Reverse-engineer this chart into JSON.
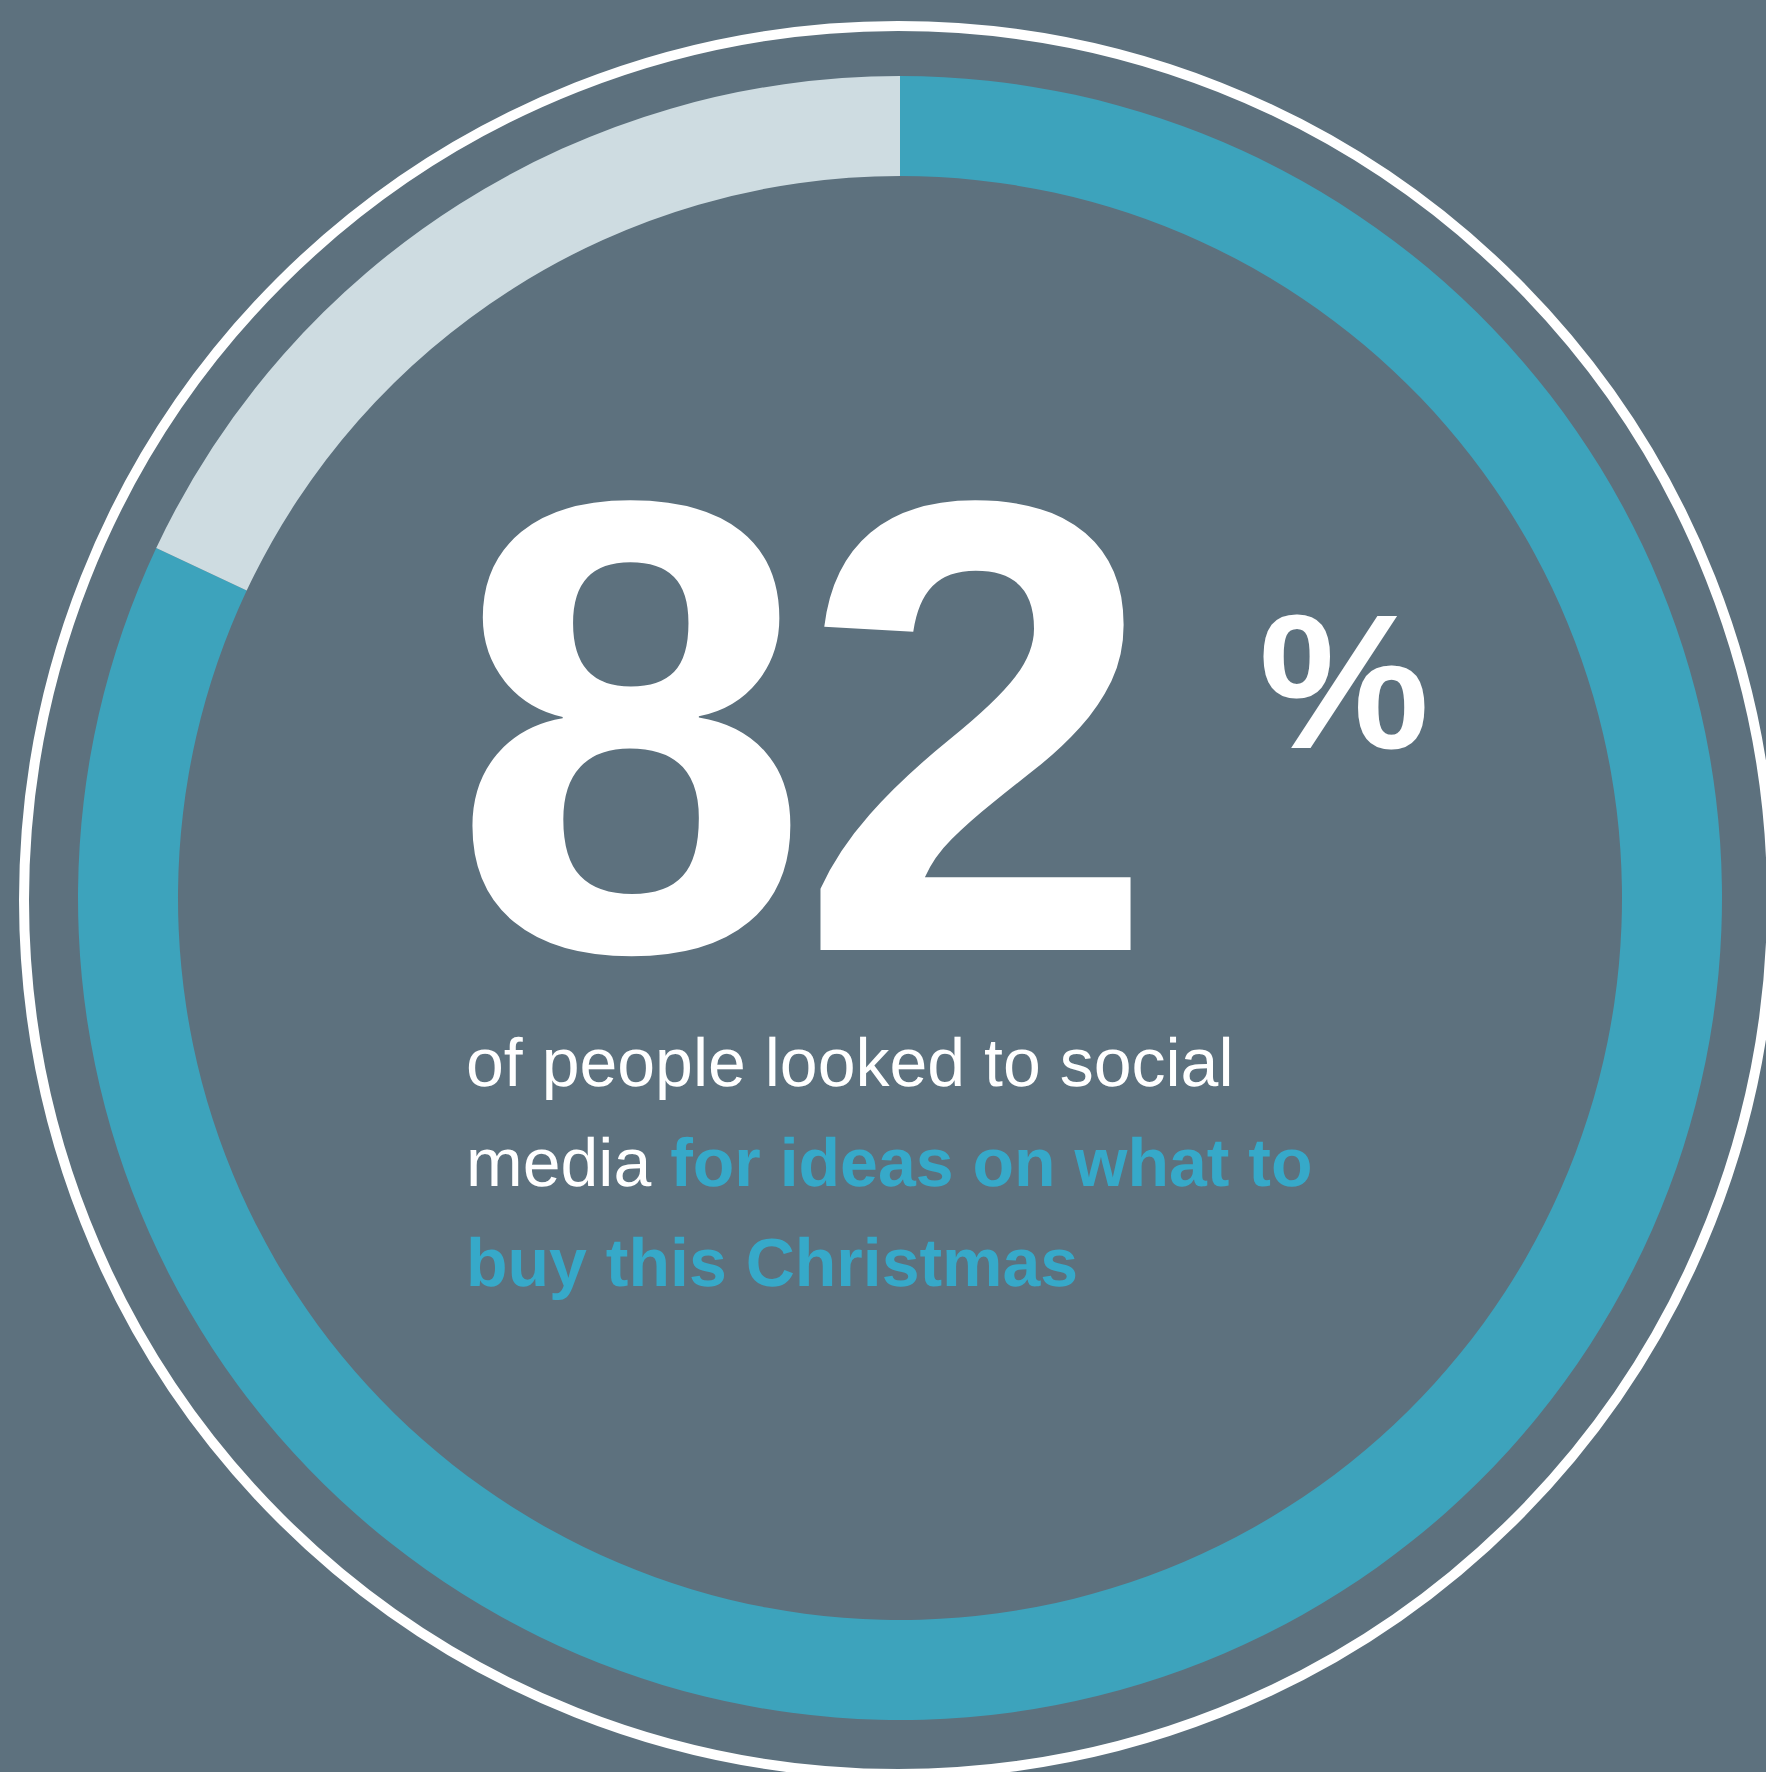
{
  "chart_data": {
    "type": "donut",
    "categories": [
      null,
      null
    ],
    "values": [
      82,
      18
    ],
    "colors": [
      "#3da3bc",
      "#cedce1"
    ],
    "value_labels": [
      "82%",
      null
    ],
    "annotations": [
      " of people looked to social media",
      "for ideas on what to buy this Christmas"
    ]
  }
}
